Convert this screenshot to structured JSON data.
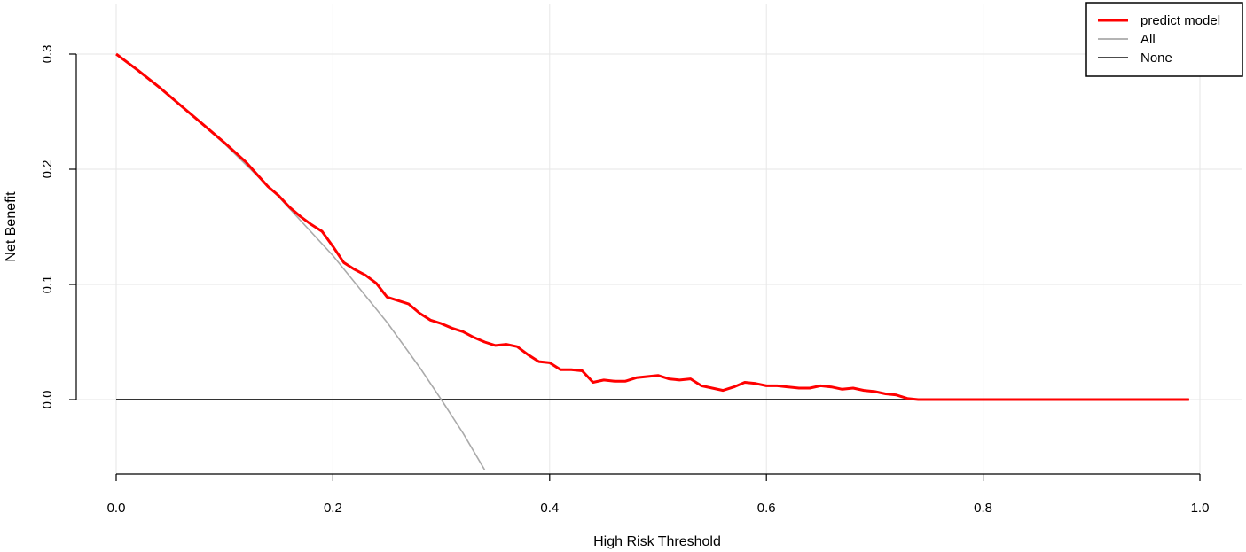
{
  "chart_data": {
    "type": "line",
    "title": "",
    "xlabel": "High Risk Threshold",
    "ylabel": "Net Benefit",
    "xlim": [
      0.0,
      1.0
    ],
    "ylim": [
      -0.065,
      0.32
    ],
    "x_ticks": [
      0.0,
      0.2,
      0.4,
      0.6,
      0.8,
      1.0
    ],
    "x_tick_labels": [
      "0.0",
      "0.2",
      "0.4",
      "0.6",
      "0.8",
      "1.0"
    ],
    "y_ticks": [
      0.0,
      0.1,
      0.2,
      0.3
    ],
    "y_tick_labels": [
      "0.0",
      "0.1",
      "0.2",
      "0.3"
    ],
    "grid": true,
    "legend_position": "top-right",
    "legend": [
      {
        "name": "predict model",
        "color": "#ff0000"
      },
      {
        "name": "All",
        "color": "#aaaaaa"
      },
      {
        "name": "None",
        "color": "#333333"
      }
    ],
    "series": [
      {
        "name": "predict model",
        "color": "#ff0000",
        "x": [
          0.0,
          0.02,
          0.04,
          0.06,
          0.08,
          0.1,
          0.12,
          0.14,
          0.15,
          0.16,
          0.17,
          0.18,
          0.19,
          0.2,
          0.21,
          0.22,
          0.23,
          0.24,
          0.25,
          0.26,
          0.27,
          0.28,
          0.29,
          0.3,
          0.31,
          0.32,
          0.33,
          0.34,
          0.35,
          0.36,
          0.37,
          0.38,
          0.39,
          0.4,
          0.41,
          0.42,
          0.43,
          0.44,
          0.45,
          0.46,
          0.47,
          0.48,
          0.49,
          0.5,
          0.51,
          0.52,
          0.53,
          0.54,
          0.55,
          0.56,
          0.57,
          0.58,
          0.59,
          0.6,
          0.61,
          0.62,
          0.63,
          0.64,
          0.65,
          0.66,
          0.67,
          0.68,
          0.69,
          0.7,
          0.71,
          0.72,
          0.73,
          0.74,
          0.75,
          0.8,
          0.85,
          0.9,
          0.95,
          0.99
        ],
        "y": [
          0.3,
          0.286,
          0.271,
          0.255,
          0.239,
          0.223,
          0.206,
          0.185,
          0.177,
          0.167,
          0.159,
          0.152,
          0.146,
          0.133,
          0.119,
          0.113,
          0.108,
          0.101,
          0.089,
          0.086,
          0.083,
          0.075,
          0.069,
          0.066,
          0.062,
          0.059,
          0.054,
          0.05,
          0.047,
          0.048,
          0.046,
          0.039,
          0.033,
          0.032,
          0.026,
          0.026,
          0.025,
          0.015,
          0.017,
          0.016,
          0.016,
          0.019,
          0.02,
          0.021,
          0.018,
          0.017,
          0.018,
          0.012,
          0.01,
          0.008,
          0.011,
          0.015,
          0.014,
          0.012,
          0.012,
          0.011,
          0.01,
          0.01,
          0.012,
          0.011,
          0.009,
          0.01,
          0.008,
          0.007,
          0.005,
          0.004,
          0.001,
          0.0,
          0.0,
          0.0,
          0.0,
          0.0,
          0.0,
          0.0
        ]
      },
      {
        "name": "All",
        "color": "#aaaaaa",
        "x": [
          0.0,
          0.05,
          0.1,
          0.15,
          0.2,
          0.25,
          0.28,
          0.3,
          0.32,
          0.34
        ],
        "y": [
          0.3,
          0.263,
          0.222,
          0.176,
          0.125,
          0.067,
          0.028,
          0.0,
          -0.029,
          -0.061
        ]
      },
      {
        "name": "None",
        "color": "#333333",
        "x": [
          0.0,
          0.99
        ],
        "y": [
          0.0,
          0.0
        ]
      }
    ]
  }
}
